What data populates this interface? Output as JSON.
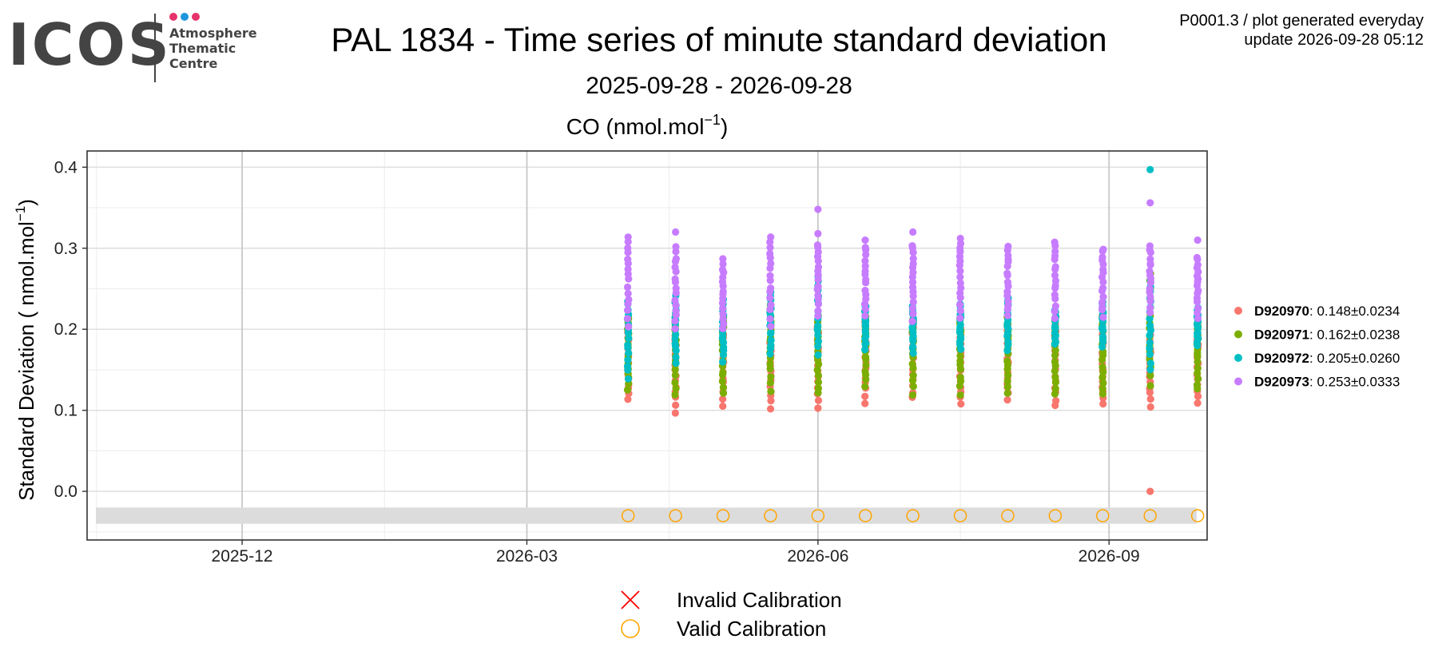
{
  "logo": {
    "wordmark": "ICOS",
    "lines": [
      "Atmosphere",
      "Thematic",
      "Centre"
    ],
    "dot_colors": [
      "#e7336b",
      "#1e96dc",
      "#e7336b"
    ]
  },
  "header": {
    "title": "PAL 1834 - Time series of minute standard deviation",
    "subtitle": "2025-09-28 - 2026-09-28",
    "meta_line1": "P0001.3 / plot generated everyday",
    "meta_line2": "update  2026-09-28 05:12"
  },
  "chart_data": {
    "type": "scatter",
    "panel_title": "CO (nmol.mol",
    "panel_title_sup": "−1",
    "panel_title_end": ")",
    "ylabel": "Standard Deviation ( nmol.mol",
    "ylabel_sup": "−1",
    "ylabel_end": ")",
    "xlim": [
      "2025-10-13",
      "2026-10-02"
    ],
    "ylim": [
      -0.06,
      0.42
    ],
    "y_ticks": [
      0.0,
      0.1,
      0.2,
      0.3,
      0.4
    ],
    "y_tick_labels": [
      "0.0",
      "0.1",
      "0.2",
      "0.3",
      "0.4"
    ],
    "x_ticks": [
      "2025-12-01",
      "2026-03-01",
      "2026-06-01",
      "2026-09-01"
    ],
    "x_tick_labels": [
      "2025-12",
      "2026-03",
      "2026-06",
      "2026-09"
    ],
    "x_minor_ticks": [
      "2025-10-16",
      "2026-01-15",
      "2026-04-15",
      "2026-07-16"
    ],
    "grid": true,
    "calibration_dates": [
      "2026-04-02",
      "2026-04-17",
      "2026-05-02",
      "2026-05-17",
      "2026-06-01",
      "2026-06-16",
      "2026-07-01",
      "2026-07-16",
      "2026-07-31",
      "2026-08-15",
      "2026-08-30",
      "2026-09-14",
      "2026-09-29"
    ],
    "calibration_band": [
      -0.04,
      -0.02
    ],
    "calibration_marker_y": -0.03,
    "series": [
      {
        "name": "D920970",
        "color": "#F8766D",
        "summary": ": 0.148±0.0234",
        "ranges": [
          [
            0.113,
            0.195
          ],
          [
            0.098,
            0.199
          ],
          [
            0.106,
            0.2
          ],
          [
            0.103,
            0.195
          ],
          [
            0.102,
            0.21
          ],
          [
            0.11,
            0.21
          ],
          [
            0.115,
            0.21
          ],
          [
            0.107,
            0.2
          ],
          [
            0.112,
            0.205
          ],
          [
            0.105,
            0.205
          ],
          [
            0.106,
            0.2
          ],
          [
            0.106,
            0.2
          ],
          [
            0.11,
            0.205
          ]
        ],
        "outliers": [
          [],
          [],
          [],
          [],
          [],
          [],
          [],
          [],
          [],
          [],
          [],
          [
            0.0
          ],
          []
        ]
      },
      {
        "name": "D920971",
        "color": "#7CAE00",
        "summary": ": 0.162±0.0238",
        "ranges": [
          [
            0.125,
            0.215
          ],
          [
            0.12,
            0.215
          ],
          [
            0.12,
            0.215
          ],
          [
            0.125,
            0.23
          ],
          [
            0.12,
            0.215
          ],
          [
            0.13,
            0.215
          ],
          [
            0.12,
            0.22
          ],
          [
            0.12,
            0.215
          ],
          [
            0.12,
            0.215
          ],
          [
            0.12,
            0.215
          ],
          [
            0.12,
            0.215
          ],
          [
            0.13,
            0.27
          ],
          [
            0.125,
            0.215
          ]
        ],
        "outliers": [
          [],
          [],
          [],
          [],
          [],
          [],
          [],
          [],
          [],
          [],
          [],
          [],
          []
        ]
      },
      {
        "name": "D920972",
        "color": "#00BFC4",
        "summary": ": 0.205±0.0260",
        "ranges": [
          [
            0.14,
            0.235
          ],
          [
            0.16,
            0.24
          ],
          [
            0.16,
            0.235
          ],
          [
            0.17,
            0.245
          ],
          [
            0.17,
            0.265
          ],
          [
            0.175,
            0.23
          ],
          [
            0.17,
            0.23
          ],
          [
            0.175,
            0.23
          ],
          [
            0.175,
            0.24
          ],
          [
            0.18,
            0.225
          ],
          [
            0.18,
            0.235
          ],
          [
            0.15,
            0.26
          ],
          [
            0.18,
            0.225
          ]
        ],
        "outliers": [
          [],
          [],
          [],
          [],
          [],
          [],
          [],
          [],
          [],
          [],
          [],
          [
            0.397
          ],
          []
        ]
      },
      {
        "name": "D920973",
        "color": "#C77CFF",
        "summary": ": 0.253±0.0333",
        "ranges": [
          [
            0.205,
            0.315
          ],
          [
            0.2,
            0.3
          ],
          [
            0.2,
            0.285
          ],
          [
            0.205,
            0.313
          ],
          [
            0.215,
            0.305
          ],
          [
            0.215,
            0.308
          ],
          [
            0.21,
            0.305
          ],
          [
            0.215,
            0.313
          ],
          [
            0.215,
            0.303
          ],
          [
            0.215,
            0.307
          ],
          [
            0.215,
            0.3
          ],
          [
            0.22,
            0.303
          ],
          [
            0.215,
            0.29
          ]
        ],
        "outliers": [
          [],
          [
            0.32
          ],
          [],
          [],
          [
            0.348,
            0.318
          ],
          [],
          [
            0.32
          ],
          [],
          [],
          [],
          [],
          [
            0.356
          ],
          [
            0.31
          ]
        ]
      }
    ],
    "legend_position": "right",
    "calibration_legend": [
      {
        "label": "Invalid Calibration",
        "marker": "cross",
        "color": "#ff0000"
      },
      {
        "label": "Valid Calibration",
        "marker": "circle",
        "color": "#ffa500"
      }
    ]
  }
}
